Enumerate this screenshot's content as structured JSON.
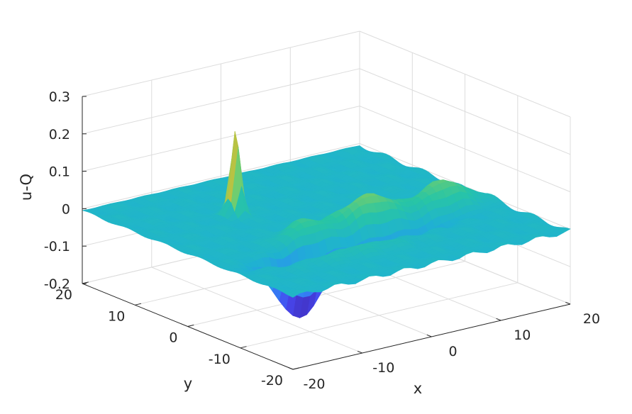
{
  "chart_data": {
    "type": "surface",
    "title": "",
    "xlabel": "x",
    "ylabel": "y",
    "zlabel": "u-Q",
    "xlim": [
      -20,
      20
    ],
    "ylim": [
      -20,
      20
    ],
    "zlim": [
      -0.2,
      0.3
    ],
    "xticks": [
      "-20",
      "-10",
      "0",
      "10",
      "20"
    ],
    "yticks": [
      "-20",
      "-10",
      "0",
      "10",
      "20"
    ],
    "zticks": [
      "-0.2",
      "-0.1",
      "0",
      "0.1",
      "0.2",
      "0.3"
    ],
    "grid": true,
    "colormap": [
      "#3e26a8",
      "#4748f0",
      "#2d8ef5",
      "#1fb2d1",
      "#28c5a5",
      "#7fcf64",
      "#d9ba30",
      "#fad22d",
      "#f9fb15"
    ],
    "features": {
      "background_level": -0.005,
      "peak": {
        "x": -7,
        "y": 8,
        "z": 0.23
      },
      "front_crest_y": -4,
      "front_crest_z": 0.08,
      "trough_y": -8,
      "trough_z": -0.17
    }
  }
}
